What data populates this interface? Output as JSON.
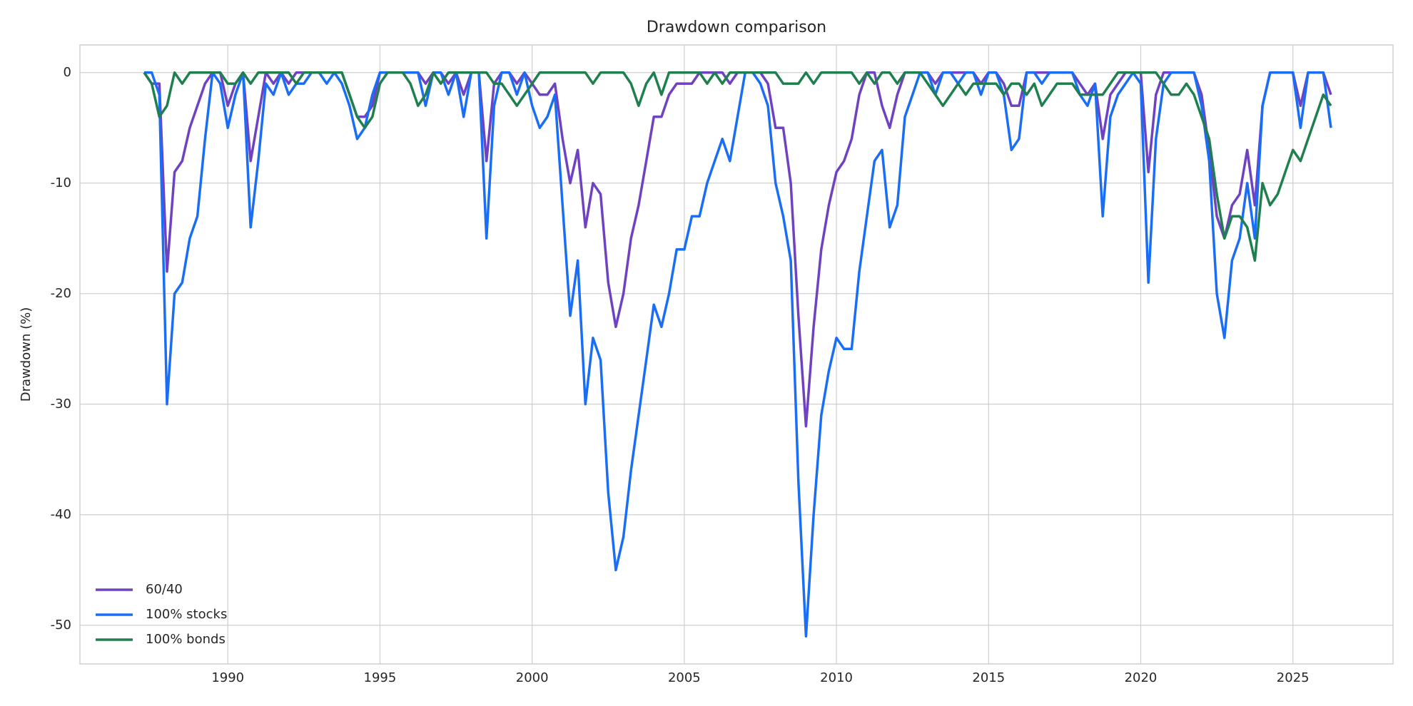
{
  "chart_data": {
    "type": "line",
    "title": "Drawdown comparison",
    "y_label": "Drawdown (%)",
    "x": [
      1987.25,
      1987.5,
      1987.75,
      1988,
      1988.25,
      1988.5,
      1988.75,
      1989,
      1989.25,
      1989.5,
      1989.75,
      1990,
      1990.25,
      1990.5,
      1990.75,
      1991,
      1991.25,
      1991.5,
      1991.75,
      1992,
      1992.25,
      1992.5,
      1992.75,
      1993,
      1993.25,
      1993.5,
      1993.75,
      1994,
      1994.25,
      1994.5,
      1994.75,
      1995,
      1995.25,
      1995.5,
      1995.75,
      1996,
      1996.25,
      1996.5,
      1996.75,
      1997,
      1997.25,
      1997.5,
      1997.75,
      1998,
      1998.25,
      1998.5,
      1998.75,
      1999,
      1999.25,
      1999.5,
      1999.75,
      2000,
      2000.25,
      2000.5,
      2000.75,
      2001,
      2001.25,
      2001.5,
      2001.75,
      2002,
      2002.25,
      2002.5,
      2002.75,
      2003,
      2003.25,
      2003.5,
      2003.75,
      2004,
      2004.25,
      2004.5,
      2004.75,
      2005,
      2005.25,
      2005.5,
      2005.75,
      2006,
      2006.25,
      2006.5,
      2006.75,
      2007,
      2007.25,
      2007.5,
      2007.75,
      2008,
      2008.25,
      2008.5,
      2008.75,
      2009,
      2009.25,
      2009.5,
      2009.75,
      2010,
      2010.25,
      2010.5,
      2010.75,
      2011,
      2011.25,
      2011.5,
      2011.75,
      2012,
      2012.25,
      2012.5,
      2012.75,
      2013,
      2013.25,
      2013.5,
      2013.75,
      2014,
      2014.25,
      2014.5,
      2014.75,
      2015,
      2015.25,
      2015.5,
      2015.75,
      2016,
      2016.25,
      2016.5,
      2016.75,
      2017,
      2017.25,
      2017.5,
      2017.75,
      2018,
      2018.25,
      2018.5,
      2018.75,
      2019,
      2019.25,
      2019.5,
      2019.75,
      2020,
      2020.25,
      2020.5,
      2020.75,
      2021,
      2021.25,
      2021.5,
      2021.75,
      2022,
      2022.25,
      2022.5,
      2022.75,
      2023,
      2023.25,
      2023.5,
      2023.75,
      2024,
      2024.25,
      2024.5,
      2024.75,
      2025,
      2025.25,
      2025.5,
      2025.75,
      2026,
      2026.25
    ],
    "series": [
      {
        "name": "60/40",
        "color": "#6f42c1",
        "values": [
          0,
          -1,
          -1,
          -18,
          -9,
          -8,
          -5,
          -3,
          -1,
          0,
          0,
          -3,
          -1,
          0,
          -8,
          -4,
          0,
          -1,
          0,
          -1,
          0,
          0,
          0,
          0,
          0,
          0,
          0,
          -2,
          -4,
          -4,
          -3,
          0,
          0,
          0,
          0,
          0,
          0,
          -1,
          0,
          0,
          -1,
          0,
          -2,
          0,
          0,
          -8,
          -1,
          0,
          0,
          -1,
          0,
          -1,
          -2,
          -2,
          -1,
          -6,
          -10,
          -7,
          -14,
          -10,
          -11,
          -19,
          -23,
          -20,
          -15,
          -12,
          -8,
          -4,
          -4,
          -2,
          -1,
          -1,
          -1,
          0,
          0,
          0,
          0,
          -1,
          0,
          0,
          0,
          0,
          -1,
          -5,
          -5,
          -10,
          -22,
          -32,
          -23,
          -16,
          -12,
          -9,
          -8,
          -6,
          -2,
          0,
          0,
          -3,
          -5,
          -2,
          0,
          0,
          0,
          0,
          -1,
          0,
          0,
          0,
          0,
          0,
          -1,
          0,
          0,
          -1,
          -3,
          -3,
          0,
          0,
          0,
          0,
          0,
          0,
          0,
          -1,
          -2,
          -1,
          -6,
          -2,
          -1,
          0,
          0,
          0,
          -9,
          -2,
          0,
          0,
          0,
          0,
          0,
          -2,
          -7,
          -13,
          -15,
          -12,
          -11,
          -7,
          -12,
          -3,
          0,
          0,
          0,
          0,
          -3,
          0,
          0,
          0,
          -2
        ]
      },
      {
        "name": "100% stocks",
        "color": "#1a6ef5",
        "values": [
          0,
          0,
          -2,
          -30,
          -20,
          -19,
          -15,
          -13,
          -6,
          0,
          -1,
          -5,
          -2,
          0,
          -14,
          -8,
          -1,
          -2,
          0,
          -2,
          -1,
          -1,
          0,
          0,
          -1,
          0,
          -1,
          -3,
          -6,
          -5,
          -2,
          0,
          0,
          0,
          0,
          0,
          0,
          -3,
          0,
          0,
          -2,
          0,
          -4,
          0,
          0,
          -15,
          -3,
          0,
          0,
          -2,
          0,
          -3,
          -5,
          -4,
          -2,
          -12,
          -22,
          -17,
          -30,
          -24,
          -26,
          -38,
          -45,
          -42,
          -36,
          -31,
          -26,
          -21,
          -23,
          -20,
          -16,
          -16,
          -13,
          -13,
          -10,
          -8,
          -6,
          -8,
          -4,
          0,
          0,
          -1,
          -3,
          -10,
          -13,
          -17,
          -37,
          -51,
          -40,
          -31,
          -27,
          -24,
          -25,
          -25,
          -18,
          -13,
          -8,
          -7,
          -14,
          -12,
          -4,
          -2,
          0,
          0,
          -2,
          0,
          0,
          -1,
          0,
          0,
          -2,
          0,
          0,
          -2,
          -7,
          -6,
          0,
          0,
          -1,
          0,
          0,
          0,
          0,
          -2,
          -3,
          -1,
          -13,
          -4,
          -2,
          -1,
          0,
          -1,
          -19,
          -6,
          -1,
          0,
          0,
          0,
          0,
          -3,
          -8,
          -20,
          -24,
          -17,
          -15,
          -10,
          -15,
          -3,
          0,
          0,
          0,
          0,
          -5,
          0,
          0,
          0,
          -5
        ]
      },
      {
        "name": "100% bonds",
        "color": "#1f7f4f",
        "values": [
          0,
          -1,
          -4,
          -3,
          0,
          -1,
          0,
          0,
          0,
          0,
          0,
          -1,
          -1,
          0,
          -1,
          0,
          0,
          0,
          0,
          0,
          -1,
          0,
          0,
          0,
          0,
          0,
          0,
          -2,
          -4,
          -5,
          -4,
          -1,
          0,
          0,
          0,
          -1,
          -3,
          -2,
          0,
          -1,
          0,
          0,
          0,
          0,
          0,
          0,
          -1,
          -1,
          -2,
          -3,
          -2,
          -1,
          0,
          0,
          0,
          0,
          0,
          0,
          0,
          -1,
          0,
          0,
          0,
          0,
          -1,
          -3,
          -1,
          0,
          -2,
          0,
          0,
          0,
          0,
          0,
          -1,
          0,
          -1,
          0,
          0,
          0,
          0,
          0,
          0,
          0,
          -1,
          -1,
          -1,
          0,
          -1,
          0,
          0,
          0,
          0,
          0,
          -1,
          0,
          -1,
          0,
          0,
          -1,
          0,
          0,
          0,
          -1,
          -2,
          -3,
          -2,
          -1,
          -2,
          -1,
          -1,
          -1,
          -1,
          -2,
          -1,
          -1,
          -2,
          -1,
          -3,
          -2,
          -1,
          -1,
          -1,
          -2,
          -2,
          -2,
          -2,
          -1,
          0,
          0,
          0,
          0,
          0,
          0,
          -1,
          -2,
          -2,
          -1,
          -2,
          -4,
          -6,
          -11,
          -15,
          -13,
          -13,
          -14,
          -17,
          -10,
          -12,
          -11,
          -9,
          -7,
          -8,
          -6,
          -4,
          -2,
          -3
        ]
      }
    ],
    "xlim": [
      1985.14,
      2028.29
    ],
    "ylim": [
      -53.5,
      2.5
    ],
    "xticks": [
      1990,
      1995,
      2000,
      2005,
      2010,
      2015,
      2020,
      2025
    ],
    "yticks": [
      0,
      -10,
      -20,
      -30,
      -40,
      -50
    ],
    "grid": true,
    "legend": "lower left"
  }
}
